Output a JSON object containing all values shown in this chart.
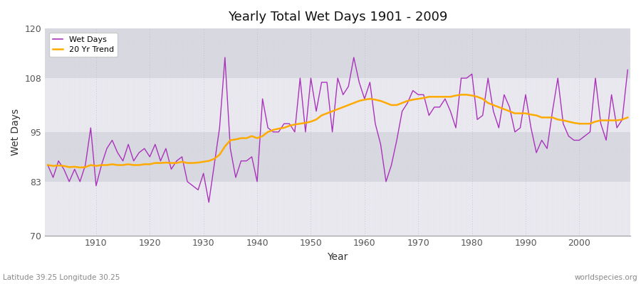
{
  "title": "Yearly Total Wet Days 1901 - 2009",
  "xlabel": "Year",
  "ylabel": "Wet Days",
  "subtitle": "Latitude 39.25 Longitude 30.25",
  "watermark": "worldspecies.org",
  "ylim": [
    70,
    120
  ],
  "yticks": [
    70,
    83,
    95,
    108,
    120
  ],
  "bg_color": "#ffffff",
  "plot_bg_color": "#e8e8ee",
  "band_color_light": "#e8e8ee",
  "band_color_dark": "#d8d8e0",
  "wet_days_color": "#aa33bb",
  "trend_color": "#ffaa00",
  "years": [
    1901,
    1902,
    1903,
    1904,
    1905,
    1906,
    1907,
    1908,
    1909,
    1910,
    1911,
    1912,
    1913,
    1914,
    1915,
    1916,
    1917,
    1918,
    1919,
    1920,
    1921,
    1922,
    1923,
    1924,
    1925,
    1926,
    1927,
    1928,
    1929,
    1930,
    1931,
    1932,
    1933,
    1934,
    1935,
    1936,
    1937,
    1938,
    1939,
    1940,
    1941,
    1942,
    1943,
    1944,
    1945,
    1946,
    1947,
    1948,
    1949,
    1950,
    1951,
    1952,
    1953,
    1954,
    1955,
    1956,
    1957,
    1958,
    1959,
    1960,
    1961,
    1962,
    1963,
    1964,
    1965,
    1966,
    1967,
    1968,
    1969,
    1970,
    1971,
    1972,
    1973,
    1974,
    1975,
    1976,
    1977,
    1978,
    1979,
    1980,
    1981,
    1982,
    1983,
    1984,
    1985,
    1986,
    1987,
    1988,
    1989,
    1990,
    1991,
    1992,
    1993,
    1994,
    1995,
    1996,
    1997,
    1998,
    1999,
    2000,
    2001,
    2002,
    2003,
    2004,
    2005,
    2006,
    2007,
    2008,
    2009
  ],
  "wet_days": [
    87,
    84,
    88,
    86,
    83,
    86,
    83,
    87,
    96,
    82,
    87,
    91,
    93,
    90,
    88,
    92,
    88,
    90,
    91,
    89,
    92,
    88,
    91,
    86,
    88,
    89,
    83,
    82,
    81,
    85,
    78,
    87,
    96,
    113,
    91,
    84,
    88,
    88,
    89,
    83,
    103,
    96,
    95,
    95,
    97,
    97,
    95,
    108,
    95,
    108,
    100,
    107,
    107,
    95,
    108,
    104,
    106,
    113,
    107,
    103,
    107,
    97,
    92,
    83,
    87,
    93,
    100,
    102,
    105,
    104,
    104,
    99,
    101,
    101,
    103,
    100,
    96,
    108,
    108,
    109,
    98,
    99,
    108,
    100,
    96,
    104,
    101,
    95,
    96,
    104,
    96,
    90,
    93,
    91,
    100,
    108,
    97,
    94,
    93,
    93,
    94,
    95,
    108,
    97,
    93,
    104,
    96,
    98,
    110
  ],
  "trend": [
    87.0,
    86.8,
    86.9,
    86.8,
    86.5,
    86.6,
    86.4,
    86.5,
    87.0,
    86.8,
    87.0,
    87.0,
    87.2,
    87.0,
    87.0,
    87.2,
    87.0,
    87.0,
    87.2,
    87.2,
    87.5,
    87.5,
    87.6,
    87.5,
    87.5,
    87.8,
    87.5,
    87.5,
    87.6,
    87.8,
    88.0,
    88.5,
    89.5,
    91.5,
    93.0,
    93.2,
    93.5,
    93.5,
    94.0,
    93.5,
    94.0,
    95.0,
    95.5,
    95.8,
    96.0,
    96.5,
    96.8,
    97.0,
    97.2,
    97.5,
    98.0,
    99.0,
    99.5,
    100.0,
    100.5,
    101.0,
    101.5,
    102.0,
    102.5,
    102.8,
    103.0,
    102.8,
    102.5,
    102.0,
    101.5,
    101.5,
    102.0,
    102.5,
    102.8,
    103.0,
    103.2,
    103.5,
    103.5,
    103.5,
    103.5,
    103.5,
    103.8,
    104.0,
    104.0,
    103.8,
    103.5,
    103.0,
    102.0,
    101.5,
    101.0,
    100.5,
    100.0,
    99.5,
    99.5,
    99.5,
    99.2,
    99.0,
    98.5,
    98.5,
    98.5,
    98.0,
    97.8,
    97.5,
    97.2,
    97.0,
    97.0,
    97.0,
    97.5,
    97.8,
    97.8,
    97.8,
    97.8,
    98.0,
    98.5
  ],
  "legend_wet_label": "Wet Days",
  "legend_trend_label": "20 Yr Trend",
  "decade_ticks": [
    1910,
    1920,
    1930,
    1940,
    1950,
    1960,
    1970,
    1980,
    1990,
    2000
  ]
}
